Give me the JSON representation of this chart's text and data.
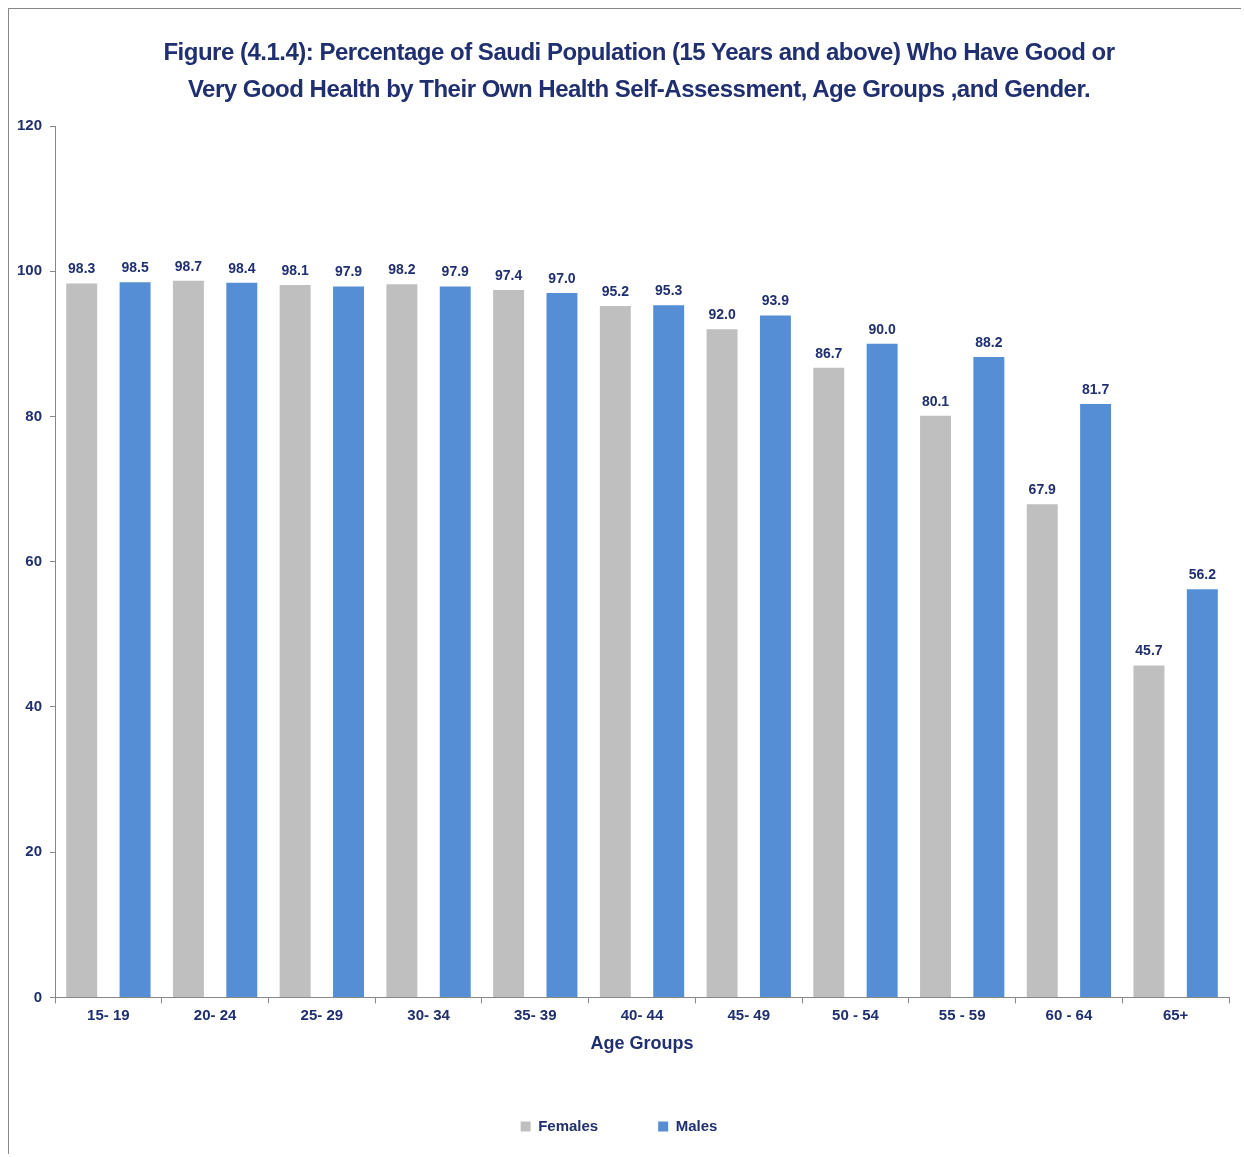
{
  "chart_data": {
    "type": "bar",
    "title": "Figure (4.1.4): Percentage of Saudi Population (15 Years and above) Who Have Good or Very Good Health by Their Own Health Self-Assessment, Age Groups ,and Gender.",
    "xlabel": "Age Groups",
    "categories": [
      "15- 19",
      "20- 24",
      "25- 29",
      "30- 34",
      "35- 39",
      "40- 44",
      "45- 49",
      "50 - 54",
      "55 - 59",
      "60 - 64",
      "65+"
    ],
    "series": [
      {
        "name": "Females",
        "color": "#bfbfbf",
        "values": [
          98.3,
          98.7,
          98.1,
          98.2,
          97.4,
          95.2,
          92.0,
          86.7,
          80.1,
          67.9,
          45.7
        ],
        "value_labels": [
          "98.3",
          "98.7",
          "98.1",
          "98.2",
          "97.4",
          "95.2",
          "92.0",
          "86.7",
          "80.1",
          "67.9",
          "45.7"
        ]
      },
      {
        "name": "Males",
        "color": "#558ed5",
        "values": [
          98.5,
          98.4,
          97.9,
          97.9,
          97.0,
          95.3,
          93.9,
          90.0,
          88.2,
          81.7,
          56.2
        ],
        "value_labels": [
          "98.5",
          "98.4",
          "97.9",
          "97.9",
          "97.0",
          "95.3",
          "93.9",
          "90.0",
          "88.2",
          "81.7",
          "56.2"
        ]
      }
    ],
    "ylim": [
      0,
      120
    ],
    "yticks": [
      0,
      20,
      40,
      60,
      80,
      100,
      120
    ],
    "grid": false,
    "legend": "bottom"
  }
}
